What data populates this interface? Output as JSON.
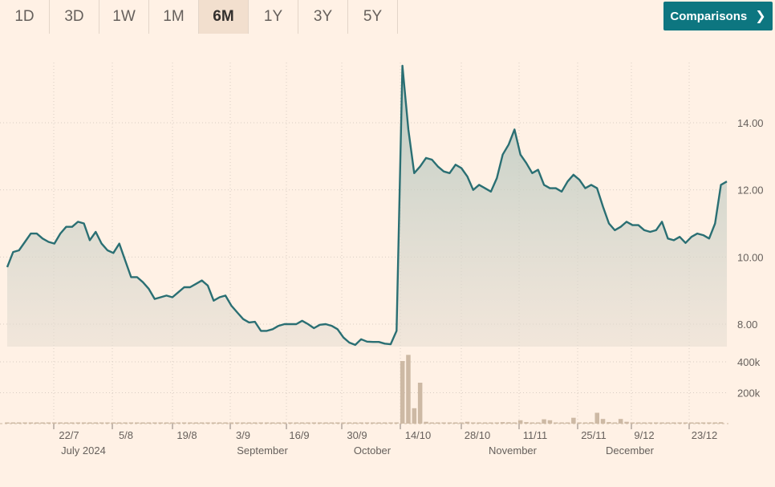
{
  "range_tabs": [
    {
      "label": "1D",
      "active": false
    },
    {
      "label": "3D",
      "active": false
    },
    {
      "label": "1W",
      "active": false
    },
    {
      "label": "1M",
      "active": false
    },
    {
      "label": "6M",
      "active": true
    },
    {
      "label": "1Y",
      "active": false
    },
    {
      "label": "3Y",
      "active": false
    },
    {
      "label": "5Y",
      "active": false
    }
  ],
  "comparisons_label": "Comparisons",
  "colors": {
    "background": "#fff1e5",
    "line": "#2a6f73",
    "volume": "#cdb9a4",
    "button": "#0d7680"
  },
  "chart_data": {
    "type": "line",
    "price_axis": {
      "ticks": [
        "8.00",
        "10.00",
        "12.00",
        "14.00"
      ],
      "ylim": [
        7.0,
        15.9
      ]
    },
    "volume_axis": {
      "ticks": [
        "200k",
        "400k"
      ],
      "ylim": [
        0,
        480000
      ]
    },
    "x_ticks": [
      "22/7",
      "5/8",
      "19/8",
      "3/9",
      "16/9",
      "30/9",
      "14/10",
      "28/10",
      "11/11",
      "25/11",
      "9/12",
      "23/12"
    ],
    "month_labels": [
      "July 2024",
      "September",
      "October",
      "November",
      "December"
    ],
    "grid": true,
    "series": [
      {
        "values": [
          9.7,
          10.15,
          10.2,
          10.45,
          10.7,
          10.7,
          10.55,
          10.45,
          10.4,
          10.7,
          10.9,
          10.9,
          11.05,
          11.0,
          10.5,
          10.75,
          10.4,
          10.2,
          10.12,
          10.4,
          9.9,
          9.4,
          9.4,
          9.25,
          9.05,
          8.75,
          8.8,
          8.85,
          8.8,
          8.95,
          9.1,
          9.1,
          9.2,
          9.3,
          9.15,
          8.7,
          8.8,
          8.85,
          8.55,
          8.35,
          8.15,
          8.05,
          8.07,
          7.8,
          7.8,
          7.85,
          7.95,
          8.0,
          8.0,
          8.0,
          8.1,
          8.0,
          7.88,
          7.98,
          8.0,
          7.95,
          7.85,
          7.6,
          7.45,
          7.38,
          7.55,
          7.48,
          7.47,
          7.47,
          7.42,
          7.4,
          7.8,
          15.7,
          13.8,
          12.5,
          12.7,
          12.95,
          12.9,
          12.7,
          12.55,
          12.5,
          12.75,
          12.65,
          12.4,
          12.0,
          12.15,
          12.05,
          11.95,
          12.35,
          13.05,
          13.35,
          13.8,
          13.05,
          12.8,
          12.5,
          12.6,
          12.15,
          12.05,
          12.05,
          11.95,
          12.25,
          12.45,
          12.3,
          12.05,
          12.15,
          12.05,
          11.5,
          11.0,
          10.8,
          10.9,
          11.05,
          10.95,
          10.95,
          10.8,
          10.75,
          10.8,
          11.05,
          10.55,
          10.5,
          10.6,
          10.42,
          10.6,
          10.7,
          10.65,
          10.55,
          11.0,
          12.15,
          12.25
        ]
      }
    ],
    "volume": [
      4000,
      5000,
      4000,
      6000,
      5000,
      4000,
      5000,
      4000,
      4000,
      5000,
      5000,
      6000,
      5000,
      4000,
      6000,
      5000,
      4000,
      5000,
      4000,
      6000,
      5000,
      4000,
      5000,
      4000,
      5000,
      4000,
      6000,
      5000,
      4000,
      5000,
      4000,
      5000,
      5000,
      4000,
      5000,
      5000,
      4000,
      8000,
      5000,
      4000,
      5000,
      6000,
      5000,
      4000,
      5000,
      5000,
      4000,
      6000,
      4000,
      5000,
      4000,
      5000,
      6000,
      4000,
      5000,
      4000,
      6000,
      4000,
      5000,
      4000,
      6000,
      4000,
      5000,
      4000,
      5000,
      4000,
      6000,
      405000,
      445000,
      100000,
      265000,
      12000,
      8000,
      6000,
      5000,
      6000,
      7000,
      6000,
      12000,
      8000,
      6000,
      5000,
      6000,
      8000,
      10000,
      9000,
      7000,
      22000,
      10000,
      8000,
      7000,
      28000,
      22000,
      8000,
      6000,
      7000,
      38000,
      8000,
      6000,
      9000,
      70000,
      30000,
      10000,
      8000,
      30000,
      12000,
      8000,
      6000,
      7000,
      6000,
      5000,
      8000,
      7000,
      6000,
      5000,
      6000,
      7000,
      5000,
      6000,
      7000,
      8000,
      9000
    ]
  }
}
